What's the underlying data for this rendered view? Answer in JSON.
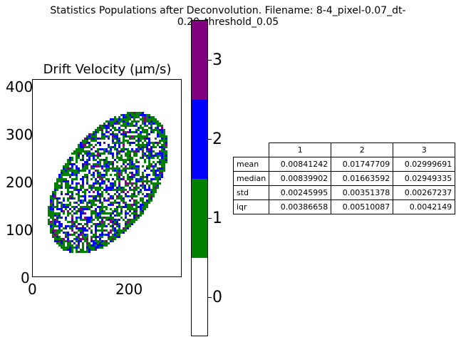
{
  "suptitle": "Statistics Populations after Deconvolution. Filename: 8-4_pixel-0.07_dt-0.20_threshold_0.05",
  "chart_data": [
    {
      "type": "heatmap",
      "title": "Drift Velocity (μm/s)",
      "xlim": [
        0,
        310
      ],
      "ylim": [
        0,
        415
      ],
      "x_ticks": [
        "0",
        "200"
      ],
      "y_ticks": [
        "0",
        "100",
        "200",
        "300",
        "400"
      ],
      "categories": [
        "0",
        "1",
        "2",
        "3"
      ],
      "colors": [
        "#ffffff",
        "#007f00",
        "#0000ff",
        "#7f007f"
      ],
      "description_of_extent": "elliptical cell region tilted from upper-left to lower-right, spanning roughly x 30–290 and y 30–380"
    },
    {
      "type": "table",
      "col_labels": [
        "1",
        "2",
        "3"
      ],
      "row_labels": [
        "mean",
        "median",
        "std",
        "iqr"
      ],
      "cells": [
        [
          "0.00841242",
          "0.01747709",
          "0.02999691"
        ],
        [
          "0.00839902",
          "0.01663592",
          "0.02949335"
        ],
        [
          "0.00245995",
          "0.00351378",
          "0.00267237"
        ],
        [
          "0.00386658",
          "0.00510087",
          "0.0042149"
        ]
      ]
    }
  ],
  "colorbar": {
    "ticks": [
      "0",
      "1",
      "2",
      "3"
    ],
    "colors": [
      "#ffffff",
      "#007f00",
      "#0000ff",
      "#7f007f"
    ]
  }
}
